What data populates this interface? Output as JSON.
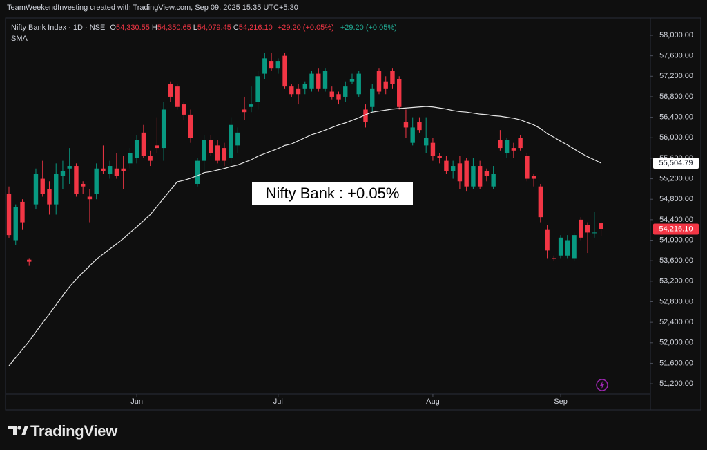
{
  "header": "TeamWeekendInvesting created with TradingView.com, Sep 09, 2025 15:35 UTC+5:30",
  "branding": "TradingView",
  "chart_data": {
    "type": "candlestick",
    "title": "Nifty Bank Index · 1D · NSE",
    "ohlc_legend": [
      {
        "key": "O",
        "value": "54,330.55"
      },
      {
        "key": "H",
        "value": "54,350.65"
      },
      {
        "key": "L",
        "value": "54,079.45"
      },
      {
        "key": "C",
        "value": "54,216.10"
      }
    ],
    "change": "+29.20 (+0.05%)",
    "sma_change": "+29.20 (+0.05%)",
    "annotation": "Nifty Bank : +0.05%",
    "up_color": "#089981",
    "down_color": "#f23645",
    "categories": [
      null,
      null,
      null,
      null,
      null,
      null,
      null,
      null,
      null,
      null,
      null,
      null,
      null,
      null,
      null,
      null,
      null,
      null,
      null,
      "Jun",
      null,
      null,
      null,
      null,
      null,
      null,
      null,
      null,
      null,
      null,
      null,
      null,
      null,
      null,
      null,
      null,
      null,
      null,
      null,
      null,
      "Jul",
      null,
      null,
      null,
      null,
      null,
      null,
      null,
      null,
      null,
      null,
      null,
      null,
      null,
      null,
      null,
      null,
      null,
      null,
      null,
      null,
      null,
      null,
      "Aug",
      null,
      null,
      null,
      null,
      null,
      null,
      null,
      null,
      null,
      null,
      null,
      null,
      null,
      null,
      null,
      null,
      null,
      null,
      "Sep",
      null,
      null,
      null,
      null,
      null,
      null
    ],
    "open": [
      54900,
      54000,
      54750,
      53620,
      54700,
      55200,
      55000,
      54700,
      55250,
      55400,
      55450,
      55100,
      54850,
      54900,
      55400,
      55300,
      55400,
      55400,
      55500,
      55600,
      56100,
      55650,
      55850,
      55800,
      57050,
      57000,
      56650,
      56450,
      55100,
      55550,
      55950,
      55850,
      55800,
      55600,
      55850,
      56550,
      56600,
      56700,
      57250,
      57500,
      57350,
      57600,
      57000,
      56950,
      56950,
      56950,
      57250,
      56950,
      56900,
      56850,
      56800,
      57100,
      56850,
      56550,
      56600,
      57300,
      57100,
      57300,
      57150,
      56300,
      55900,
      56300,
      55850,
      55900,
      55650,
      55550,
      55350,
      55500,
      55550,
      55050,
      55450,
      55350,
      55050,
      55950,
      55700,
      55800,
      56000,
      55650,
      55250,
      55050,
      54200,
      53650,
      53700,
      53700,
      53650,
      54400,
      54300,
      54150,
      54330.55
    ],
    "high": [
      55050,
      54700,
      54800,
      53650,
      55400,
      55550,
      55150,
      55500,
      55550,
      55800,
      55500,
      55150,
      55000,
      55500,
      55850,
      55550,
      55700,
      55650,
      55800,
      56050,
      56250,
      55750,
      56400,
      56700,
      57100,
      57050,
      56700,
      56550,
      55600,
      56050,
      56050,
      55950,
      55900,
      56400,
      56200,
      56800,
      57000,
      57300,
      57650,
      57650,
      57550,
      57650,
      57050,
      57050,
      57100,
      57300,
      57350,
      57350,
      57000,
      56900,
      57100,
      57250,
      57300,
      56650,
      57050,
      57350,
      57200,
      57350,
      57200,
      56550,
      56400,
      56400,
      56400,
      56000,
      55700,
      55650,
      55550,
      55650,
      55600,
      55600,
      55550,
      55400,
      55450,
      56150,
      56000,
      55900,
      56050,
      55700,
      55300,
      55100,
      54300,
      53700,
      54100,
      54100,
      54150,
      54450,
      54350,
      54550,
      54350.65
    ],
    "low": [
      54050,
      53900,
      54200,
      53500,
      54600,
      54850,
      54500,
      54500,
      55000,
      55100,
      54850,
      54900,
      54350,
      54800,
      55300,
      55200,
      55200,
      55000,
      55400,
      55500,
      55600,
      55450,
      55700,
      55550,
      56700,
      56550,
      56350,
      55900,
      55050,
      55350,
      55650,
      55500,
      55450,
      55500,
      55700,
      56350,
      56500,
      56550,
      57150,
      57300,
      57250,
      56950,
      56800,
      56650,
      56850,
      56900,
      56900,
      56900,
      56750,
      56650,
      56700,
      57050,
      56800,
      56200,
      56500,
      56850,
      56850,
      56950,
      56550,
      56000,
      55850,
      56100,
      55700,
      55550,
      55500,
      55300,
      55200,
      55000,
      54950,
      55000,
      55000,
      55150,
      55000,
      55750,
      55600,
      55600,
      55750,
      55150,
      55050,
      54350,
      53650,
      53600,
      53650,
      53650,
      53600,
      54000,
      53750,
      54050,
      54079.45
    ],
    "close": [
      54100,
      54650,
      54350,
      53580,
      55300,
      54900,
      54700,
      55300,
      55350,
      55450,
      54900,
      55050,
      54800,
      55400,
      55350,
      55450,
      55250,
      55350,
      55700,
      55950,
      55650,
      55550,
      55800,
      56550,
      56800,
      56600,
      56450,
      56000,
      55550,
      55950,
      55700,
      55550,
      55550,
      56250,
      56100,
      56500,
      56650,
      57200,
      57550,
      57350,
      57500,
      57000,
      56850,
      56850,
      57050,
      57250,
      56950,
      57300,
      56800,
      56750,
      57000,
      57150,
      57250,
      56300,
      56950,
      56900,
      56950,
      57050,
      56600,
      56200,
      56200,
      56150,
      56000,
      55650,
      55600,
      55350,
      55450,
      55150,
      55050,
      55450,
      55050,
      55250,
      55300,
      55800,
      55950,
      55750,
      55800,
      55200,
      55200,
      54450,
      53800,
      53630,
      54050,
      54000,
      54100,
      54050,
      54150,
      54150,
      54216.1
    ],
    "close_label": "54,216.10",
    "sma": {
      "name": "SMA",
      "color": "#e6e6e6",
      "last_label": "55,504.79",
      "values": [
        51550,
        51710,
        51870,
        52030,
        52210,
        52390,
        52560,
        52740,
        52920,
        53090,
        53240,
        53370,
        53500,
        53630,
        53730,
        53830,
        53930,
        54030,
        54150,
        54260,
        54380,
        54500,
        54660,
        54820,
        54980,
        55140,
        55170,
        55210,
        55260,
        55320,
        55340,
        55370,
        55400,
        55440,
        55470,
        55520,
        55570,
        55640,
        55690,
        55740,
        55790,
        55850,
        55880,
        55940,
        56000,
        56060,
        56100,
        56150,
        56200,
        56250,
        56290,
        56340,
        56390,
        56450,
        56500,
        56520,
        56540,
        56560,
        56570,
        56580,
        56590,
        56600,
        56610,
        56600,
        56580,
        56560,
        56530,
        56510,
        56500,
        56480,
        56460,
        56450,
        56430,
        56420,
        56400,
        56380,
        56350,
        56300,
        56250,
        56180,
        56080,
        56010,
        55930,
        55860,
        55780,
        55700,
        55630,
        55570,
        55504.79
      ]
    },
    "ylim": [
      50999,
      58553
    ],
    "yticks": [
      {
        "value": 58000,
        "label": "58,000.00"
      },
      {
        "value": 57600,
        "label": "57,600.00"
      },
      {
        "value": 57200,
        "label": "57,200.00"
      },
      {
        "value": 56800,
        "label": "56,800.00"
      },
      {
        "value": 56400,
        "label": "56,400.00"
      },
      {
        "value": 56000,
        "label": "56,000.00"
      },
      {
        "value": 55600,
        "label": "55,600.00"
      },
      {
        "value": 55200,
        "label": "55,200.00"
      },
      {
        "value": 54800,
        "label": "54,800.00"
      },
      {
        "value": 54400,
        "label": "54,400.00"
      },
      {
        "value": 54000,
        "label": "54,000.00"
      },
      {
        "value": 53600,
        "label": "53,600.00"
      },
      {
        "value": 53200,
        "label": "53,200.00"
      },
      {
        "value": 52800,
        "label": "52,800.00"
      },
      {
        "value": 52400,
        "label": "52,400.00"
      },
      {
        "value": 52000,
        "label": "52,000.00"
      },
      {
        "value": 51600,
        "label": "51,600.00"
      },
      {
        "value": 51200,
        "label": "51,200.00"
      }
    ]
  }
}
